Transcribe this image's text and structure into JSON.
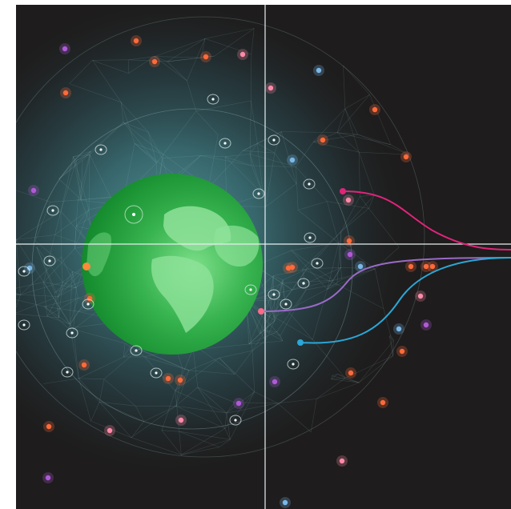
{
  "scene": {
    "subject": "globe-satellite-network",
    "colors": {
      "background": "#1e1c1c",
      "glow": "#3f7f86",
      "earth_land": "#5fcf6a",
      "earth_ocean": "#1f9a3a",
      "mesh": "#9fc6c8",
      "crosshair": "#e8eef0",
      "line_pink": "#e0247a",
      "line_purple": "#9a6ac8",
      "line_blue": "#2aa8d8",
      "dot_orange": "#ff6a3a",
      "dot_pink": "#ff8aa8",
      "dot_purple": "#b05ad8",
      "dot_blue": "#7ab8e8"
    },
    "connection_count": 3
  }
}
